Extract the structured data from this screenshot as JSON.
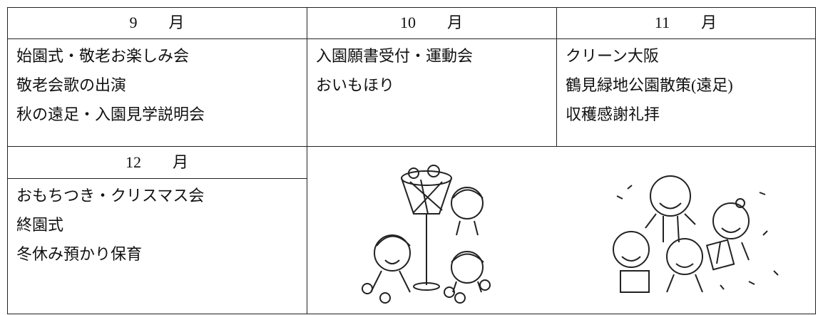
{
  "table": {
    "cells": [
      {
        "header": "9　　月",
        "items": [
          "始園式・敬老お楽しみ会",
          "敬老会歌の出演",
          "秋の遠足・入園見学説明会"
        ]
      },
      {
        "header": "10　　月",
        "items": [
          "入園願書受付・運動会",
          "おいもほり"
        ]
      },
      {
        "header": "11　　月",
        "items": [
          "クリーン大阪",
          "鶴見緑地公園散策(遠足)",
          "収穫感謝礼拝"
        ]
      },
      {
        "header": "12　　月",
        "items": [
          "おもちつき・クリスマス会",
          "終園式",
          "冬休み預かり保育"
        ]
      }
    ]
  }
}
